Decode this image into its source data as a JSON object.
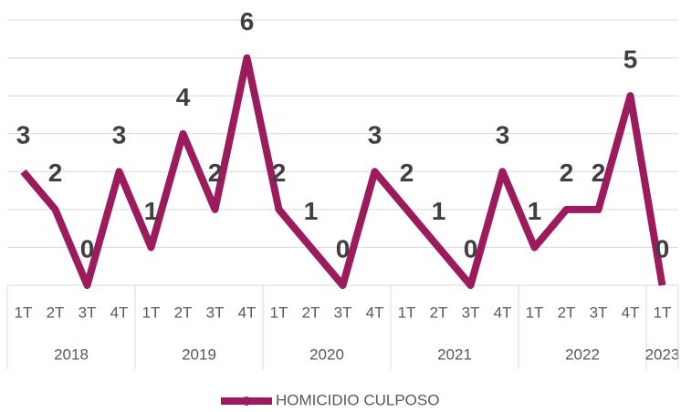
{
  "chart_data": {
    "type": "line",
    "groups": [
      {
        "label": "2018",
        "categories": [
          "1T",
          "2T",
          "3T",
          "4T"
        ]
      },
      {
        "label": "2019",
        "categories": [
          "1T",
          "2T",
          "3T",
          "4T"
        ]
      },
      {
        "label": "2020",
        "categories": [
          "1T",
          "2T",
          "3T",
          "4T"
        ]
      },
      {
        "label": "2021",
        "categories": [
          "1T",
          "2T",
          "3T",
          "4T"
        ]
      },
      {
        "label": "2022",
        "categories": [
          "1T",
          "2T",
          "3T",
          "4T"
        ]
      },
      {
        "label": "2023",
        "categories": [
          "1T"
        ]
      }
    ],
    "series": [
      {
        "name": "HOMICIDIO CULPOSO",
        "color": "#9b1b5c",
        "values": [
          3,
          2,
          0,
          3,
          1,
          4,
          2,
          6,
          2,
          1,
          0,
          3,
          2,
          1,
          0,
          3,
          1,
          2,
          2,
          5,
          0
        ]
      }
    ],
    "ylim": [
      0,
      7
    ],
    "yticks": [
      0,
      1,
      2,
      3,
      4,
      5,
      6,
      7
    ],
    "grid": true,
    "legend": "bottom"
  }
}
